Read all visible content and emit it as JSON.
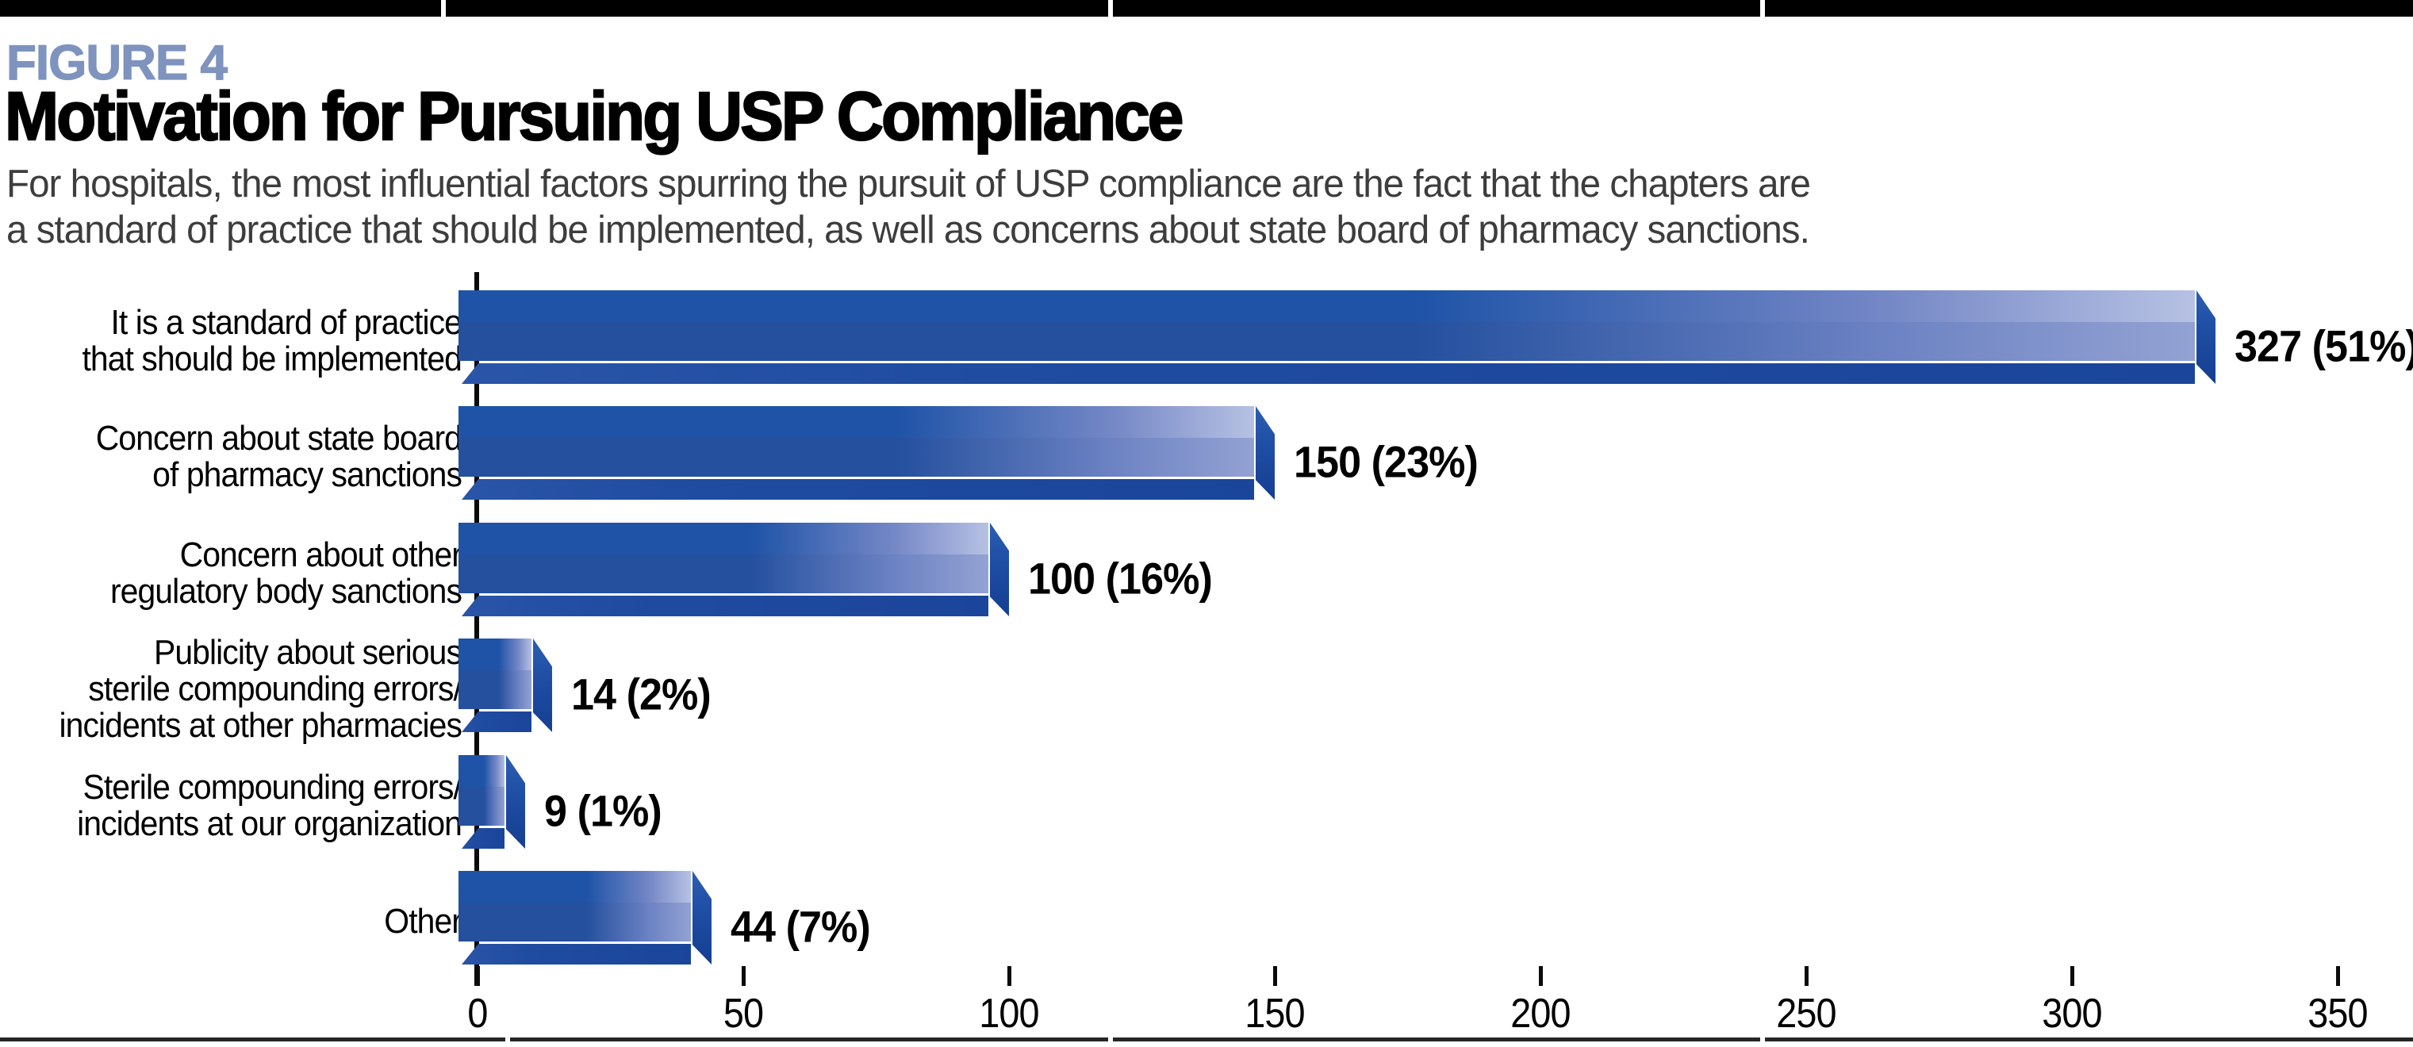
{
  "page": {
    "top_divider_gaps": [
      556,
      1397,
      2219
    ],
    "bottom_divider_gaps": [
      637,
      1397,
      2219
    ]
  },
  "header": {
    "kicker": "FIGURE 4",
    "title": "Motivation for Pursuing USP Compliance",
    "subtitle_lines": [
      "For hospitals, the most influential factors spurring the pursuit of USP compliance are the fact that the chapters are",
      "a standard of practice that should be implemented, as well as concerns about state board of pharmacy sanctions."
    ]
  },
  "colors": {
    "kicker": "#7E93BD",
    "subtitle": "#3D3D3D",
    "top_bar": "#000000",
    "bottom_line": "#262626",
    "axis": "#0B0B0B",
    "bar_face_top_dark": "#1E53A7",
    "bar_face_top_light": "#B6C1E3",
    "bar_face_bottom_dark": "#24509E",
    "bar_face_bottom_light": "#93A2D3",
    "bar_underside": "#1F4BA1",
    "bar_end_cap": "#1E4DA4"
  },
  "chart_data": {
    "type": "bar",
    "orientation": "horizontal",
    "title": "Motivation for Pursuing USP Compliance",
    "xlabel": "",
    "ylabel": "",
    "xlim": [
      0,
      350
    ],
    "x_ticks": [
      0,
      50,
      100,
      150,
      200,
      250,
      300,
      350
    ],
    "grid": false,
    "legend": null,
    "categories": [
      "It is a standard of practice that should be implemented",
      "Concern about state board of pharmacy sanctions",
      "Concern about other regulatory body sanctions",
      "Publicity about serious sterile compounding errors/incidents at other pharmacies",
      "Sterile compounding errors/incidents at our organization",
      "Other"
    ],
    "category_lines": [
      [
        "It is a standard of practice",
        "that should be implemented"
      ],
      [
        "Concern about state board",
        "of pharmacy sanctions"
      ],
      [
        "Concern about other",
        "regulatory body sanctions"
      ],
      [
        "Publicity about serious",
        "sterile compounding errors/",
        "incidents at other pharmacies"
      ],
      [
        "Sterile compounding errors/",
        "incidents at our organization"
      ],
      [
        "Other"
      ]
    ],
    "values": [
      327,
      150,
      100,
      14,
      9,
      44
    ],
    "percents": [
      51,
      23,
      16,
      2,
      1,
      7
    ],
    "value_labels": [
      "327 (51%)",
      "150 (23%)",
      "100 (16%)",
      "14 (2%)",
      "9 (1%)",
      "44 (7%)"
    ]
  }
}
